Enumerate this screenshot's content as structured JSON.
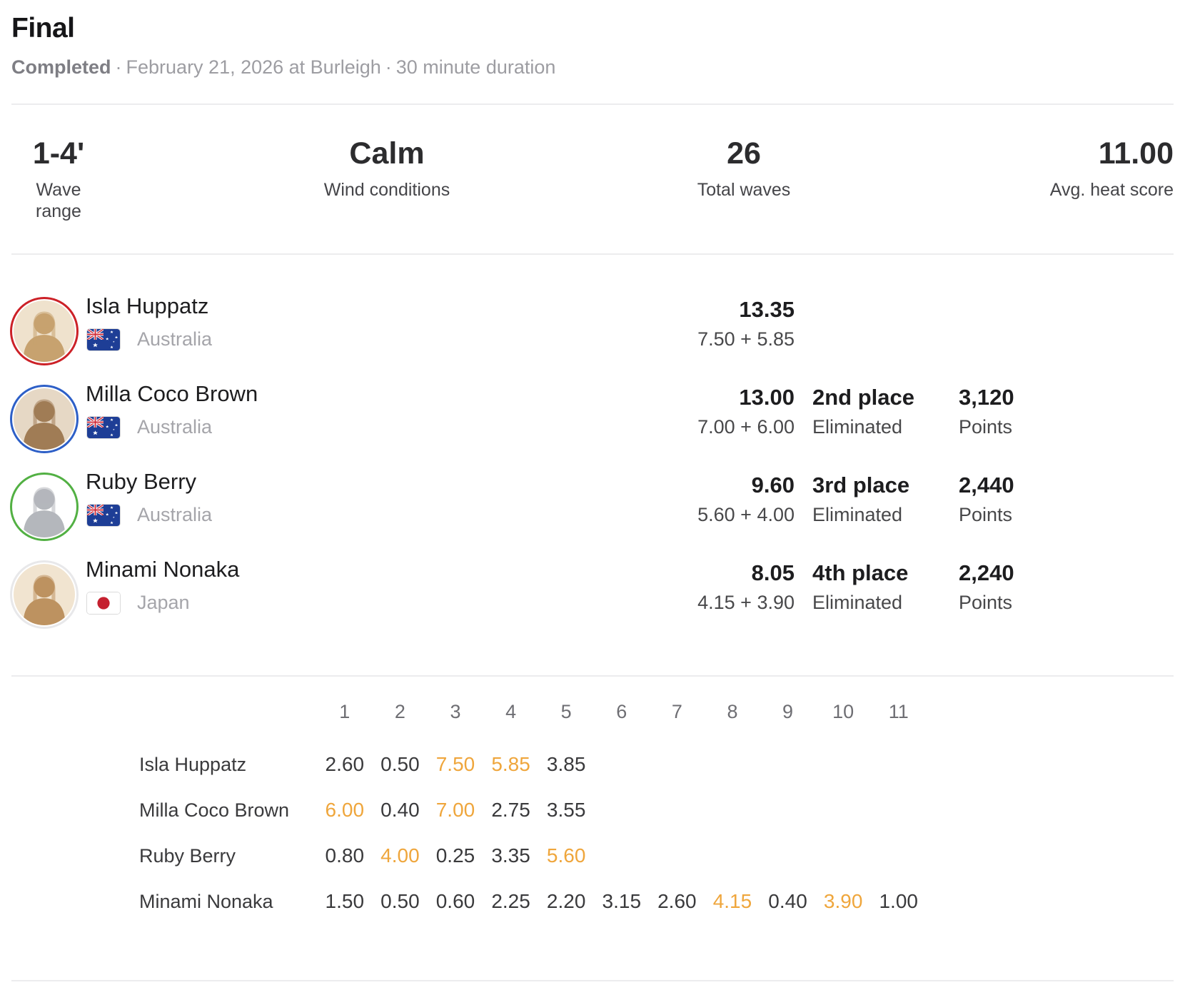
{
  "header": {
    "title": "Final",
    "status": "Completed",
    "dot": "·",
    "date_location": "February 21, 2026 at Burleigh",
    "duration": "30 minute duration"
  },
  "stats": [
    {
      "value": "1-4'",
      "label": "Wave range"
    },
    {
      "value": "Calm",
      "label": "Wind conditions"
    },
    {
      "value": "26",
      "label": "Total waves"
    },
    {
      "value": "11.00",
      "label": "Avg. heat score"
    }
  ],
  "colors": {
    "highlight_orange": "#EFA63C",
    "divider": "#ececee",
    "australia_flag_blue": "#1e3e96",
    "japan_flag_red": "#c5202f"
  },
  "surfers": [
    {
      "name": "Isla Huppatz",
      "country": "Australia",
      "flag": "au",
      "jersey_color": "#cc2127",
      "total": "13.35",
      "breakdown": "7.50 + 5.85",
      "place": "",
      "status": "",
      "points": "",
      "points_label": ""
    },
    {
      "name": "Milla Coco Brown",
      "country": "Australia",
      "flag": "au",
      "jersey_color": "#2d5fc7",
      "total": "13.00",
      "breakdown": "7.00 + 6.00",
      "place": "2nd place",
      "status": "Eliminated",
      "points": "3,120",
      "points_label": "Points"
    },
    {
      "name": "Ruby Berry",
      "country": "Australia",
      "flag": "au",
      "jersey_color": "#52b043",
      "total": "9.60",
      "breakdown": "5.60 + 4.00",
      "place": "3rd place",
      "status": "Eliminated",
      "points": "2,440",
      "points_label": "Points"
    },
    {
      "name": "Minami Nonaka",
      "country": "Japan",
      "flag": "jp",
      "jersey_color": "#e8e8ea",
      "total": "8.05",
      "breakdown": "4.15 + 3.90",
      "place": "4th place",
      "status": "Eliminated",
      "points": "2,240",
      "points_label": "Points"
    }
  ],
  "wave_table": {
    "columns": [
      "1",
      "2",
      "3",
      "4",
      "5",
      "6",
      "7",
      "8",
      "9",
      "10",
      "11"
    ],
    "rows": [
      {
        "name": "Isla Huppatz",
        "scores": [
          "2.60",
          "0.50",
          "7.50",
          "5.85",
          "3.85"
        ],
        "highlight_idx": [
          2,
          3
        ]
      },
      {
        "name": "Milla Coco Brown",
        "scores": [
          "6.00",
          "0.40",
          "7.00",
          "2.75",
          "3.55"
        ],
        "highlight_idx": [
          0,
          2
        ]
      },
      {
        "name": "Ruby Berry",
        "scores": [
          "0.80",
          "4.00",
          "0.25",
          "3.35",
          "5.60"
        ],
        "highlight_idx": [
          1,
          4
        ]
      },
      {
        "name": "Minami Nonaka",
        "scores": [
          "1.50",
          "0.50",
          "0.60",
          "2.25",
          "2.20",
          "3.15",
          "2.60",
          "4.15",
          "0.40",
          "3.90",
          "1.00"
        ],
        "highlight_idx": [
          7,
          9
        ]
      }
    ]
  }
}
